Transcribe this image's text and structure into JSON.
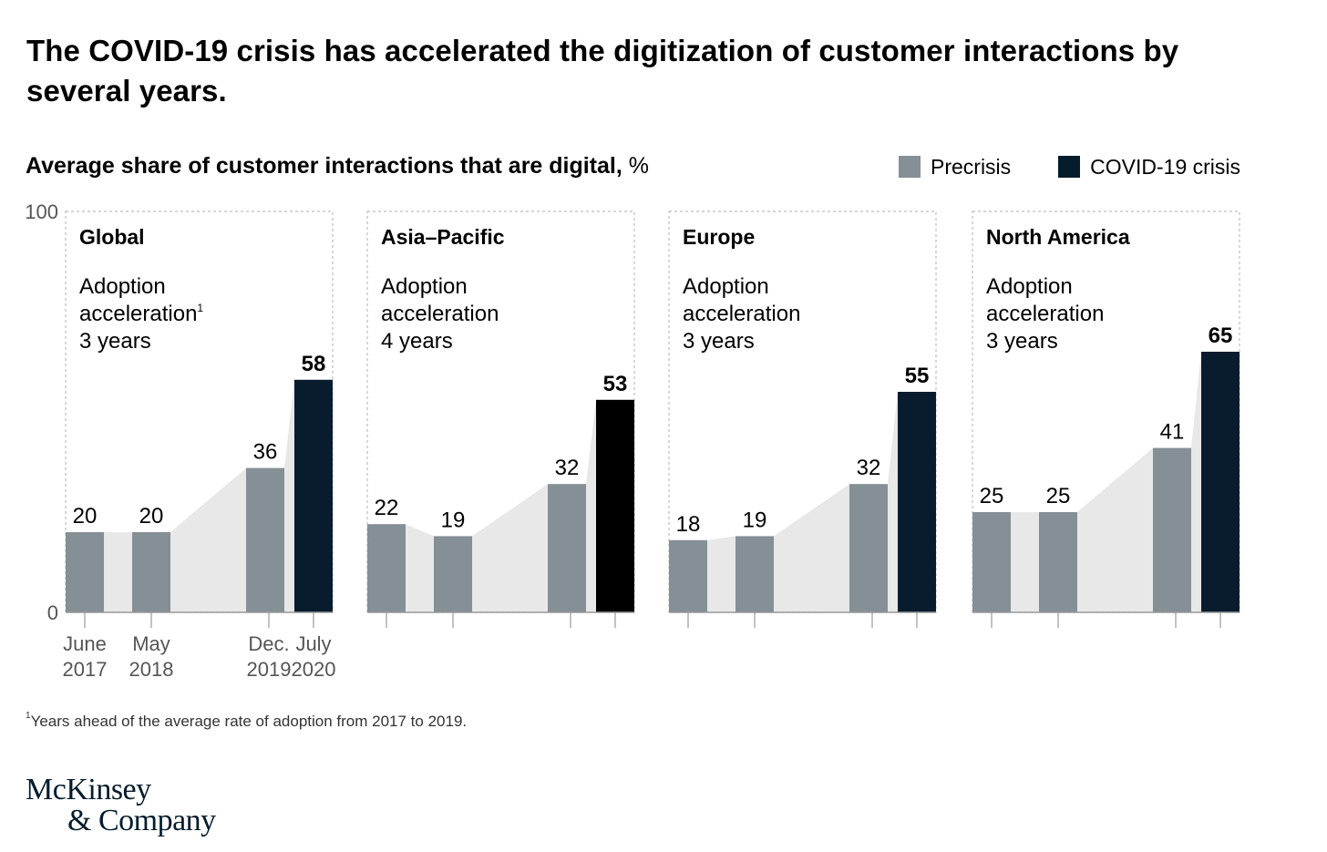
{
  "title": "The COVID-19 crisis has accelerated the digitization of customer interactions by several years.",
  "subtitle_bold": "Average share of customer interactions that are digital,",
  "subtitle_unit": " %",
  "legend": [
    {
      "label": "Precrisis",
      "color": "#858f96"
    },
    {
      "label": "COVID-19 crisis",
      "color": "#051c2c"
    }
  ],
  "footnote_marker": "1",
  "footnote_text": "Years ahead of the average rate of adoption from 2017 to 2019.",
  "logo_line1": "McKinsey",
  "logo_line2": "& Company",
  "colors": {
    "precrisis": "#858f96",
    "crisis": "#081c2d",
    "crisis_asia": "#000000",
    "area": "#e8e8e8",
    "panel_border": "#bdbdbd",
    "axis": "#999999"
  },
  "chart_data": {
    "type": "bar",
    "ylim": [
      0,
      100
    ],
    "y_ticks": [
      "0",
      "100"
    ],
    "categories": [
      "June 2017",
      "May 2018",
      "Dec. 2019",
      "July 2020"
    ],
    "x_tick_labels": [
      [
        "June",
        "2017"
      ],
      [
        "May",
        "2018"
      ],
      [
        "Dec.",
        "2019"
      ],
      [
        "July",
        "2020"
      ]
    ],
    "panels": [
      {
        "name": "Global",
        "acceleration_label": [
          "Adoption",
          "acceleration"
        ],
        "acceleration_marker": "1",
        "acceleration_value": "3 years",
        "values": [
          20,
          20,
          36,
          58
        ]
      },
      {
        "name": "Asia–Pacific",
        "acceleration_label": [
          "Adoption",
          "acceleration"
        ],
        "acceleration_marker": "",
        "acceleration_value": "4 years",
        "values": [
          22,
          19,
          32,
          53
        ]
      },
      {
        "name": "Europe",
        "acceleration_label": [
          "Adoption",
          "acceleration"
        ],
        "acceleration_marker": "",
        "acceleration_value": "3 years",
        "values": [
          18,
          19,
          32,
          55
        ]
      },
      {
        "name": "North America",
        "acceleration_label": [
          "Adoption",
          "acceleration"
        ],
        "acceleration_marker": "",
        "acceleration_value": "3 years",
        "values": [
          25,
          25,
          41,
          65
        ]
      }
    ]
  }
}
